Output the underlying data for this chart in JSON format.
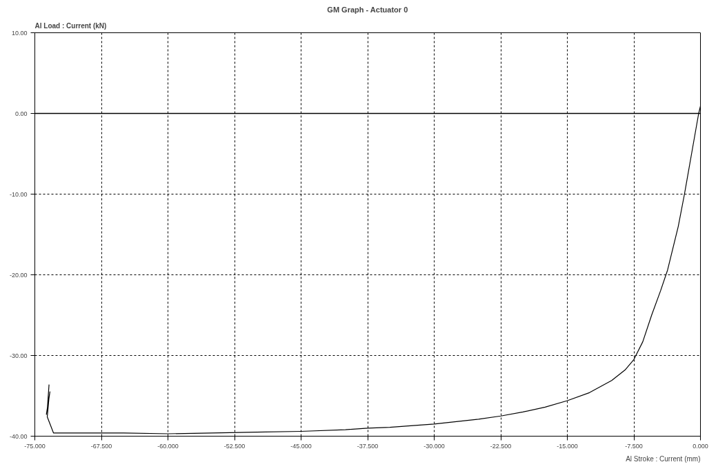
{
  "chart_data": {
    "type": "line",
    "title": "GM Graph - Actuator 0",
    "xlabel": "Al Stroke : Current (mm)",
    "ylabel": "Al Load : Current (kN)",
    "series": [
      {
        "color": "#000000",
        "x": [
          -73.4,
          -73.6,
          -73.3,
          -73.7,
          -73.4,
          -73.6,
          -72.9,
          -65,
          -60,
          -55,
          -50,
          -45,
          -40,
          -37.5,
          -35,
          -30,
          -25,
          -22.5,
          -20,
          -17.5,
          -15,
          -12.5,
          -10,
          -8.5,
          -7.5,
          -6.5,
          -5.5,
          -4.5,
          -3.7,
          -2.5,
          -1.8,
          -1.0,
          -0.2,
          0
        ],
        "values": [
          -33.6,
          -36.8,
          -34.5,
          -37.3,
          -35.2,
          -37.6,
          -39.6,
          -39.6,
          -39.7,
          -39.6,
          -39.5,
          -39.4,
          -39.2,
          -39.0,
          -38.9,
          -38.5,
          -37.9,
          -37.5,
          -37.0,
          -36.4,
          -35.6,
          -34.6,
          -33.1,
          -31.8,
          -30.5,
          -28.3,
          -25.0,
          -22.0,
          -19.4,
          -14.0,
          -10.0,
          -5.0,
          0,
          0.9
        ]
      }
    ],
    "xlim": [
      -75,
      0
    ],
    "ylim": [
      -40,
      10
    ],
    "xticks": [
      {
        "value": -75,
        "label": "-75.000"
      },
      {
        "value": -67.5,
        "label": "-67.500"
      },
      {
        "value": -60,
        "label": "-60.000"
      },
      {
        "value": -52.5,
        "label": "-52.500"
      },
      {
        "value": -45,
        "label": "-45.000"
      },
      {
        "value": -37.5,
        "label": "-37.500"
      },
      {
        "value": -30,
        "label": "-30.000"
      },
      {
        "value": -22.5,
        "label": "-22.500"
      },
      {
        "value": -15,
        "label": "-15.000"
      },
      {
        "value": -7.5,
        "label": "-7.500"
      },
      {
        "value": 0,
        "label": "0.000"
      }
    ],
    "yticks": [
      {
        "value": -40,
        "label": "-40.00"
      },
      {
        "value": -30,
        "label": "-30.00"
      },
      {
        "value": -20,
        "label": "-20.00"
      },
      {
        "value": -10,
        "label": "-10.00"
      },
      {
        "value": 0,
        "label": "0.00"
      },
      {
        "value": 10,
        "label": "10.00"
      }
    ],
    "ref_lines": [
      {
        "axis": "y",
        "value": 0,
        "color": "#000000"
      }
    ],
    "grid": true,
    "line_style": "solid",
    "marker": "none"
  }
}
